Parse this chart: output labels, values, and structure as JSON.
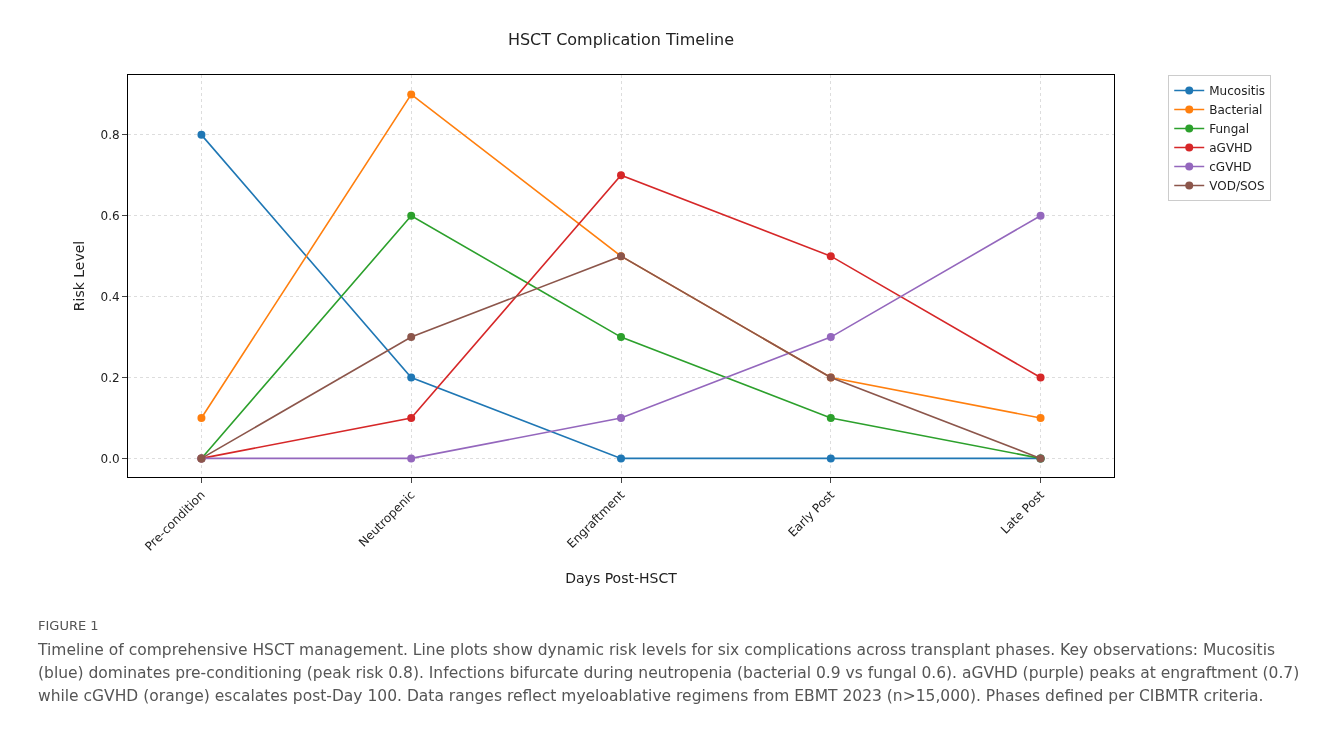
{
  "chart_data": {
    "type": "line",
    "title": "HSCT Complication Timeline",
    "xlabel": "Days Post-HSCT",
    "ylabel": "Risk Level",
    "categories": [
      "Pre-condition",
      "Neutropenic",
      "Engraftment",
      "Early Post",
      "Late Post"
    ],
    "ylim": [
      -0.046,
      0.948
    ],
    "yticks": [
      {
        "value": 0,
        "label": "0.0"
      },
      {
        "value": 0.2,
        "label": "0.2"
      },
      {
        "value": 0.4,
        "label": "0.4"
      },
      {
        "value": 0.6,
        "label": "0.6"
      },
      {
        "value": 0.8,
        "label": "0.8"
      }
    ],
    "series": [
      {
        "name": "Mucositis",
        "color": "#1f77b4",
        "values": [
          0.8,
          0.2,
          0,
          0,
          0
        ]
      },
      {
        "name": "Bacterial",
        "color": "#ff7f0e",
        "values": [
          0.1,
          0.9,
          0.5,
          0.2,
          0.1
        ]
      },
      {
        "name": "Fungal",
        "color": "#2ca02c",
        "values": [
          0,
          0.6,
          0.3,
          0.1,
          0
        ]
      },
      {
        "name": "aGVHD",
        "color": "#d62728",
        "values": [
          0,
          0.1,
          0.7,
          0.5,
          0.2
        ]
      },
      {
        "name": "cGVHD",
        "color": "#9467bd",
        "values": [
          0,
          0,
          0.1,
          0.3,
          0.6
        ]
      },
      {
        "name": "VOD/SOS",
        "color": "#8c564b",
        "values": [
          0,
          0.3,
          0.5,
          0.2,
          0
        ]
      }
    ],
    "grid": true,
    "legend": "top right",
    "marker": "circle",
    "line_style": "solid",
    "annotations": [
      "FIGURE 1",
      "Timeline of comprehensive HSCT management. Line plots show dynamic risk levels for six complications across transplant phases. Key observations: Mucositis (blue) dominates pre-conditioning (peak risk 0.8). Infections bifurcate during neutropenia (bacterial 0.9 vs fungal 0.6). aGVHD (purple) peaks at engraftment (0.7) while cGVHD (orange) escalates post-Day 100. Data ranges reflect myeloablative regimens from EBMT 2023 (n>15,000). Phases defined per CIBMTR criteria."
    ]
  }
}
